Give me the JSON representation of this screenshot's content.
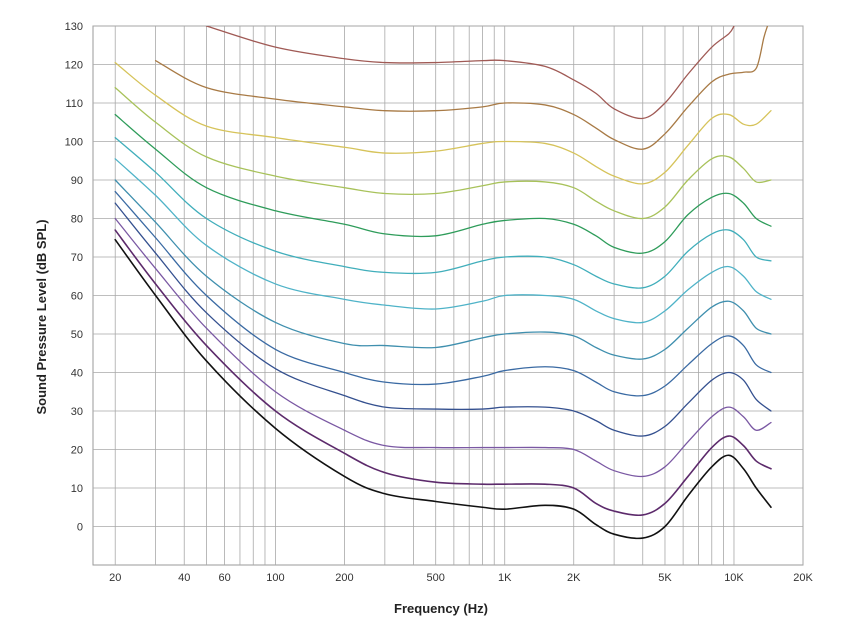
{
  "chart_data": {
    "type": "line",
    "xlabel": "Frequency (Hz)",
    "ylabel": "Sound Pressure Level (dB SPL)",
    "x_scale": "log",
    "xlim": [
      16,
      20000
    ],
    "ylim": [
      -10,
      130
    ],
    "grid": true,
    "legend": "none",
    "x_tick_values": [
      20,
      40,
      60,
      100,
      200,
      500,
      1000,
      2000,
      5000,
      10000,
      20000
    ],
    "x_tick_labels": [
      "20",
      "40",
      "60",
      "100",
      "200",
      "500",
      "1K",
      "2K",
      "5K",
      "10K",
      "20K"
    ],
    "y_ticks": [
      0,
      10,
      20,
      30,
      40,
      50,
      60,
      70,
      80,
      90,
      100,
      110,
      120,
      130
    ],
    "minor_x_gridlines": [
      20,
      30,
      40,
      50,
      60,
      70,
      80,
      90,
      100,
      200,
      300,
      400,
      500,
      600,
      700,
      800,
      900,
      1000,
      2000,
      3000,
      4000,
      5000,
      6000,
      7000,
      8000,
      9000,
      10000,
      20000
    ],
    "series": [
      {
        "color": "#111111",
        "points": [
          [
            20,
            74.5
          ],
          [
            30,
            60
          ],
          [
            50,
            43
          ],
          [
            100,
            25.5
          ],
          [
            200,
            13
          ],
          [
            300,
            8.5
          ],
          [
            500,
            6.5
          ],
          [
            800,
            5
          ],
          [
            1000,
            4.5
          ],
          [
            1500,
            5.5
          ],
          [
            2000,
            4.5
          ],
          [
            2500,
            0.5
          ],
          [
            3000,
            -2
          ],
          [
            4000,
            -3
          ],
          [
            5000,
            0
          ],
          [
            6300,
            8
          ],
          [
            8000,
            15.5
          ],
          [
            9500,
            18.5
          ],
          [
            11000,
            15
          ],
          [
            12500,
            10
          ],
          [
            14500,
            5
          ]
        ]
      },
      {
        "color": "#5c2a6b",
        "points": [
          [
            20,
            77
          ],
          [
            30,
            63
          ],
          [
            50,
            47
          ],
          [
            100,
            30
          ],
          [
            200,
            19
          ],
          [
            300,
            14
          ],
          [
            500,
            11.5
          ],
          [
            800,
            11
          ],
          [
            1000,
            11
          ],
          [
            1500,
            11
          ],
          [
            2000,
            10
          ],
          [
            2500,
            6
          ],
          [
            3000,
            4
          ],
          [
            4000,
            3
          ],
          [
            5000,
            6
          ],
          [
            6300,
            13
          ],
          [
            8000,
            20.5
          ],
          [
            9500,
            23.5
          ],
          [
            11000,
            21
          ],
          [
            12500,
            17
          ],
          [
            14500,
            15
          ]
        ]
      },
      {
        "color": "#7a58a3",
        "points": [
          [
            20,
            80
          ],
          [
            30,
            67
          ],
          [
            50,
            51.5
          ],
          [
            100,
            35
          ],
          [
            200,
            25
          ],
          [
            300,
            21
          ],
          [
            500,
            20.5
          ],
          [
            800,
            20.5
          ],
          [
            1000,
            20.5
          ],
          [
            1500,
            20.5
          ],
          [
            2000,
            20
          ],
          [
            2500,
            17
          ],
          [
            3000,
            14.5
          ],
          [
            4000,
            13
          ],
          [
            5000,
            15.5
          ],
          [
            6300,
            22
          ],
          [
            8000,
            28.5
          ],
          [
            9500,
            31
          ],
          [
            11000,
            28.5
          ],
          [
            12500,
            25
          ],
          [
            14500,
            27
          ]
        ]
      },
      {
        "color": "#34508f",
        "points": [
          [
            20,
            84
          ],
          [
            30,
            71
          ],
          [
            50,
            55.5
          ],
          [
            100,
            41
          ],
          [
            200,
            34
          ],
          [
            300,
            31
          ],
          [
            500,
            30.5
          ],
          [
            800,
            30.5
          ],
          [
            1000,
            31
          ],
          [
            1500,
            31
          ],
          [
            2000,
            30
          ],
          [
            2500,
            27.5
          ],
          [
            3000,
            25
          ],
          [
            4000,
            23.5
          ],
          [
            5000,
            26
          ],
          [
            6300,
            32
          ],
          [
            8000,
            38
          ],
          [
            9500,
            40
          ],
          [
            11000,
            38
          ],
          [
            12500,
            33
          ],
          [
            14500,
            30
          ]
        ]
      },
      {
        "color": "#3a6aa3",
        "points": [
          [
            20,
            87
          ],
          [
            30,
            75
          ],
          [
            50,
            60
          ],
          [
            100,
            46
          ],
          [
            200,
            40
          ],
          [
            300,
            37.5
          ],
          [
            500,
            37
          ],
          [
            800,
            39
          ],
          [
            1000,
            40.5
          ],
          [
            1500,
            41.5
          ],
          [
            2000,
            40.5
          ],
          [
            2500,
            37.5
          ],
          [
            3000,
            35
          ],
          [
            4000,
            34
          ],
          [
            5000,
            36.5
          ],
          [
            6300,
            42
          ],
          [
            8000,
            47.5
          ],
          [
            9500,
            49.5
          ],
          [
            11000,
            47
          ],
          [
            12500,
            42
          ],
          [
            14500,
            40
          ]
        ]
      },
      {
        "color": "#3f8fae",
        "points": [
          [
            20,
            90
          ],
          [
            30,
            79
          ],
          [
            50,
            65
          ],
          [
            100,
            53
          ],
          [
            200,
            47.5
          ],
          [
            300,
            47
          ],
          [
            500,
            46.5
          ],
          [
            800,
            49
          ],
          [
            1000,
            50
          ],
          [
            1500,
            50.5
          ],
          [
            2000,
            49.5
          ],
          [
            2500,
            46.5
          ],
          [
            3000,
            44.5
          ],
          [
            4000,
            43.5
          ],
          [
            5000,
            46
          ],
          [
            6300,
            51.5
          ],
          [
            8000,
            57
          ],
          [
            9500,
            58.5
          ],
          [
            11000,
            56
          ],
          [
            12500,
            51.5
          ],
          [
            14500,
            50
          ]
        ]
      },
      {
        "color": "#4fb3c8",
        "points": [
          [
            20,
            95.5
          ],
          [
            30,
            86
          ],
          [
            50,
            73
          ],
          [
            100,
            63
          ],
          [
            200,
            59
          ],
          [
            300,
            57.5
          ],
          [
            500,
            56.5
          ],
          [
            800,
            58.5
          ],
          [
            1000,
            60
          ],
          [
            1500,
            60
          ],
          [
            2000,
            59
          ],
          [
            2500,
            56
          ],
          [
            3000,
            54
          ],
          [
            4000,
            53
          ],
          [
            5000,
            56
          ],
          [
            6300,
            61.5
          ],
          [
            8000,
            66
          ],
          [
            9500,
            67.5
          ],
          [
            11000,
            65
          ],
          [
            12500,
            61
          ],
          [
            14500,
            59
          ]
        ]
      },
      {
        "color": "#40aebb",
        "points": [
          [
            20,
            101
          ],
          [
            30,
            92
          ],
          [
            50,
            80
          ],
          [
            100,
            71.5
          ],
          [
            200,
            67.5
          ],
          [
            300,
            66
          ],
          [
            500,
            66
          ],
          [
            800,
            69
          ],
          [
            1000,
            70
          ],
          [
            1500,
            70
          ],
          [
            2000,
            68
          ],
          [
            2500,
            65
          ],
          [
            3000,
            63
          ],
          [
            4000,
            62
          ],
          [
            5000,
            65
          ],
          [
            6300,
            71.5
          ],
          [
            8000,
            76
          ],
          [
            9500,
            77
          ],
          [
            11000,
            74.5
          ],
          [
            12500,
            70
          ],
          [
            14500,
            69
          ]
        ]
      },
      {
        "color": "#2e9c5a",
        "points": [
          [
            20,
            107
          ],
          [
            30,
            98
          ],
          [
            50,
            88
          ],
          [
            100,
            82
          ],
          [
            200,
            78.5
          ],
          [
            300,
            76
          ],
          [
            500,
            75.5
          ],
          [
            800,
            78.5
          ],
          [
            1000,
            79.5
          ],
          [
            1500,
            80
          ],
          [
            2000,
            78.5
          ],
          [
            2500,
            75.5
          ],
          [
            3000,
            72.5
          ],
          [
            4000,
            71
          ],
          [
            5000,
            74
          ],
          [
            6300,
            81
          ],
          [
            8000,
            85.5
          ],
          [
            9500,
            86.5
          ],
          [
            11000,
            84
          ],
          [
            12500,
            80
          ],
          [
            14500,
            78
          ]
        ]
      },
      {
        "color": "#a8c25a",
        "points": [
          [
            20,
            114
          ],
          [
            30,
            105
          ],
          [
            50,
            96
          ],
          [
            100,
            91
          ],
          [
            200,
            88
          ],
          [
            300,
            86.5
          ],
          [
            500,
            86.5
          ],
          [
            800,
            88.5
          ],
          [
            1000,
            89.5
          ],
          [
            1500,
            89.5
          ],
          [
            2000,
            88
          ],
          [
            2500,
            84.5
          ],
          [
            3000,
            82
          ],
          [
            4000,
            80
          ],
          [
            5000,
            83
          ],
          [
            6300,
            90
          ],
          [
            8000,
            95.5
          ],
          [
            9500,
            96
          ],
          [
            11000,
            93
          ],
          [
            12500,
            89.5
          ],
          [
            14500,
            90
          ]
        ]
      },
      {
        "color": "#d6c35a",
        "points": [
          [
            20,
            120.5
          ],
          [
            30,
            112
          ],
          [
            50,
            104
          ],
          [
            100,
            101
          ],
          [
            200,
            98.5
          ],
          [
            300,
            97
          ],
          [
            500,
            97.5
          ],
          [
            800,
            99.5
          ],
          [
            1000,
            100
          ],
          [
            1500,
            99.5
          ],
          [
            2000,
            97
          ],
          [
            2500,
            93.5
          ],
          [
            3000,
            91
          ],
          [
            4000,
            89
          ],
          [
            5000,
            92
          ],
          [
            6300,
            99
          ],
          [
            8000,
            106
          ],
          [
            9500,
            107
          ],
          [
            11000,
            104.5
          ],
          [
            12500,
            104.5
          ],
          [
            14500,
            108
          ]
        ]
      },
      {
        "color": "#a87a45",
        "points": [
          [
            30,
            121
          ],
          [
            50,
            114
          ],
          [
            100,
            111
          ],
          [
            200,
            109
          ],
          [
            300,
            108
          ],
          [
            500,
            108
          ],
          [
            800,
            109
          ],
          [
            1000,
            110
          ],
          [
            1500,
            109.5
          ],
          [
            2000,
            107
          ],
          [
            2500,
            103.5
          ],
          [
            3000,
            100.5
          ],
          [
            4000,
            98
          ],
          [
            5000,
            102
          ],
          [
            6300,
            109
          ],
          [
            8000,
            115.5
          ],
          [
            9500,
            117.5
          ],
          [
            11000,
            118
          ],
          [
            12500,
            119
          ],
          [
            13500,
            127
          ],
          [
            14000,
            130
          ]
        ]
      },
      {
        "color": "#a05a55",
        "points": [
          [
            50,
            130
          ],
          [
            100,
            124.5
          ],
          [
            200,
            121.5
          ],
          [
            300,
            120.5
          ],
          [
            500,
            120.5
          ],
          [
            800,
            121
          ],
          [
            1000,
            121
          ],
          [
            1500,
            119.5
          ],
          [
            2000,
            116
          ],
          [
            2500,
            112.5
          ],
          [
            3000,
            108.5
          ],
          [
            4000,
            106
          ],
          [
            5000,
            110
          ],
          [
            6300,
            117.5
          ],
          [
            8000,
            124.5
          ],
          [
            9500,
            128
          ],
          [
            10000,
            130
          ]
        ]
      }
    ]
  }
}
